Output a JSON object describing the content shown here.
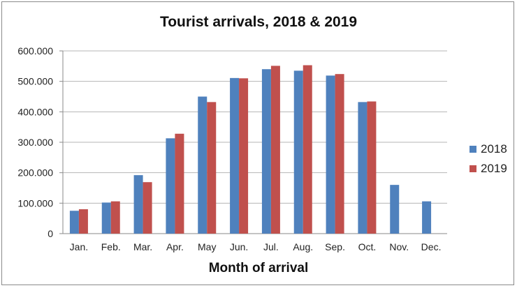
{
  "chart_data": {
    "type": "bar",
    "title": "Tourist arrivals, 2018 & 2019",
    "xlabel": "Month of arrival",
    "ylabel": "",
    "categories": [
      "Jan.",
      "Feb.",
      "Mar.",
      "Apr.",
      "May",
      "Jun.",
      "Jul.",
      "Aug.",
      "Sep.",
      "Oct.",
      "Nov.",
      "Dec."
    ],
    "series": [
      {
        "name": "2018",
        "color": "#4f81bd",
        "values": [
          75000,
          102000,
          192000,
          313000,
          450000,
          511000,
          540000,
          535000,
          519000,
          432000,
          160000,
          106000
        ]
      },
      {
        "name": "2019",
        "color": "#c0504d",
        "values": [
          80000,
          106000,
          169000,
          328000,
          432000,
          510000,
          551000,
          553000,
          524000,
          434000,
          null,
          null
        ]
      }
    ],
    "ylim": [
      0,
      600000
    ],
    "yticks": [
      0,
      100000,
      200000,
      300000,
      400000,
      500000,
      600000
    ],
    "ytick_labels": [
      "0",
      "100.000",
      "200.000",
      "300.000",
      "400.000",
      "500.000",
      "600.000"
    ],
    "grid": true,
    "legend_position": "right"
  }
}
